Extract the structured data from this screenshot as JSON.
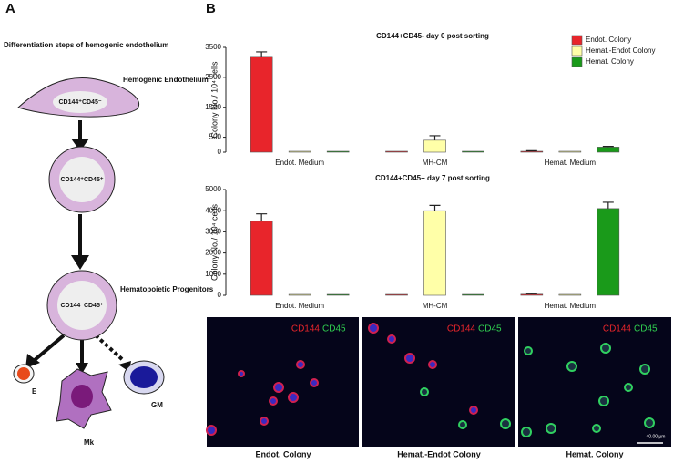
{
  "panel_labels": [
    "A",
    "B"
  ],
  "diagram": {
    "title": "Differentiation steps of hemogenic endothelium",
    "nodes": [
      {
        "label": "CD144⁺CD45⁻",
        "caption": "Hemogenic Endothelium"
      },
      {
        "label": "CD144⁺CD45⁺"
      },
      {
        "label": "CD144⁻CD45⁺",
        "caption": "Hematopoietic Progenitors"
      }
    ],
    "fates": [
      "E",
      "Mk",
      "GM"
    ]
  },
  "chart_data": [
    {
      "type": "bar",
      "title": "CD144+CD45- day 0 post sorting",
      "ylabel": "Colony No./ 10⁴ cells",
      "categories": [
        "Endot. Medium",
        "MH-CM",
        "Hemat. Medium"
      ],
      "series": [
        {
          "name": "Endot. Colony",
          "color": "#e8252b",
          "values": [
            3200,
            0,
            30
          ],
          "errors": [
            150,
            0,
            20
          ]
        },
        {
          "name": "Hemat.-Endot Colony",
          "color": "#ffffa8",
          "values": [
            0,
            400,
            0
          ],
          "errors": [
            0,
            150,
            0
          ]
        },
        {
          "name": "Hemat. Colony",
          "color": "#1a9a1a",
          "values": [
            0,
            0,
            170
          ],
          "errors": [
            0,
            0,
            25
          ]
        }
      ],
      "ylim": [
        0,
        3500
      ],
      "yticks": [
        0,
        500,
        1500,
        2500,
        3500
      ],
      "legend": "upper right"
    },
    {
      "type": "bar",
      "title": "CD144+CD45+ day 7 post sorting",
      "ylabel": "Colony No./ 10⁴ cells",
      "categories": [
        "Endot. Medium",
        "MH-CM",
        "Hemat. Medium"
      ],
      "series": [
        {
          "name": "Endot. Colony",
          "color": "#e8252b",
          "values": [
            3500,
            0,
            50
          ],
          "errors": [
            350,
            0,
            30
          ]
        },
        {
          "name": "Hemat.-Endot Colony",
          "color": "#ffffa8",
          "values": [
            0,
            4000,
            0
          ],
          "errors": [
            0,
            250,
            0
          ]
        },
        {
          "name": "Hemat. Colony",
          "color": "#1a9a1a",
          "values": [
            0,
            0,
            4100
          ],
          "errors": [
            0,
            0,
            300
          ]
        }
      ],
      "ylim": [
        0,
        5000
      ],
      "yticks": [
        0,
        1000,
        2000,
        3000,
        4000,
        5000
      ]
    }
  ],
  "images": [
    {
      "markers": [
        "CD144",
        "CD45"
      ],
      "caption": "Endot. Colony"
    },
    {
      "markers": [
        "CD144",
        "CD45"
      ],
      "caption": "Hemat.-Endot Colony"
    },
    {
      "markers": [
        "CD144",
        "CD45"
      ],
      "caption": "Hemat. Colony"
    }
  ],
  "scale_bar": "40.00 µm"
}
